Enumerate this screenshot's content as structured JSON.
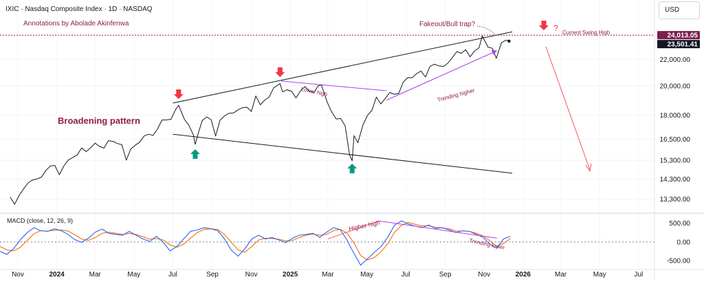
{
  "header": {
    "title": "IXIC · Nasdaq Composite Index · 1D · NASDAQ",
    "credit": "Annotations by Abolade Akinfenwa",
    "currency": "USD"
  },
  "price_badges": {
    "swing_high": "24,013.05",
    "last": "23,501.41"
  },
  "annotations": {
    "pattern": "Broadening pattern",
    "fakeout": "Fakeout/Bull trap?",
    "question": "?",
    "swing_high": "Current Swing High",
    "lower_high": "Lower high",
    "trending_higher": "Trending higher",
    "higher_high": "Higher high",
    "trending_lower": "Trending lower"
  },
  "macd_label": "MACD (close, 12, 26, 9)",
  "colors": {
    "price_line": "#131722",
    "macd_line": "#2962ff",
    "signal_line": "#ff6d00",
    "annotation": "#8e1c4a",
    "down_arrow": "#f23645",
    "up_arrow": "#089981",
    "trend_violet": "#b03ee8",
    "projection": "#f7525f"
  },
  "chart_data": [
    {
      "type": "line",
      "title": "IXIC · Nasdaq Composite Index · 1D · NASDAQ",
      "x_ticks": [
        "Nov",
        "2024",
        "Mar",
        "May",
        "Jul",
        "Sep",
        "Nov",
        "2025",
        "Mar",
        "May",
        "Jul",
        "Sep",
        "Nov",
        "2026",
        "Mar",
        "May",
        "Jul"
      ],
      "y_ticks": [
        "24,000.00",
        "22,000.00",
        "20,000.00",
        "18,000.00",
        "16,500.00",
        "15,300.00",
        "14,300.00",
        "13,300.00"
      ],
      "scale": "log",
      "ylim": [
        12800,
        25300
      ],
      "series": [
        {
          "x": [
            "2023-10-20",
            "2023-10-27",
            "2023-11-03",
            "2023-11-10",
            "2023-11-17",
            "2023-11-24",
            "2023-12-01",
            "2023-12-08",
            "2023-12-15",
            "2023-12-22",
            "2023-12-29",
            "2024-01-05",
            "2024-01-12",
            "2024-01-19",
            "2024-01-26",
            "2024-02-02",
            "2024-02-09",
            "2024-02-16",
            "2024-02-23",
            "2024-03-01",
            "2024-03-08",
            "2024-03-15",
            "2024-03-22",
            "2024-03-29",
            "2024-04-05",
            "2024-04-12",
            "2024-04-19",
            "2024-04-26",
            "2024-05-03",
            "2024-05-10",
            "2024-05-17",
            "2024-05-24",
            "2024-05-31",
            "2024-06-07",
            "2024-06-14",
            "2024-06-21",
            "2024-06-28",
            "2024-07-05",
            "2024-07-10",
            "2024-07-19",
            "2024-07-26",
            "2024-08-02",
            "2024-08-05",
            "2024-08-09",
            "2024-08-16",
            "2024-08-23",
            "2024-08-30",
            "2024-09-06",
            "2024-09-13",
            "2024-09-20",
            "2024-09-27",
            "2024-10-04",
            "2024-10-11",
            "2024-10-18",
            "2024-10-25",
            "2024-11-01",
            "2024-11-08",
            "2024-11-15",
            "2024-11-22",
            "2024-11-29",
            "2024-12-06",
            "2024-12-16",
            "2024-12-20",
            "2024-12-27",
            "2025-01-03",
            "2025-01-10",
            "2025-01-17",
            "2025-01-24",
            "2025-01-31",
            "2025-02-07",
            "2025-02-14",
            "2025-02-19",
            "2025-02-28",
            "2025-03-07",
            "2025-03-14",
            "2025-03-21",
            "2025-03-28",
            "2025-04-04",
            "2025-04-08",
            "2025-04-11",
            "2025-04-17",
            "2025-04-25",
            "2025-05-02",
            "2025-05-09",
            "2025-05-16",
            "2025-05-23",
            "2025-05-30",
            "2025-06-06",
            "2025-06-13",
            "2025-06-20",
            "2025-06-27",
            "2025-07-04",
            "2025-07-11",
            "2025-07-18",
            "2025-07-25",
            "2025-08-01",
            "2025-08-08",
            "2025-08-15",
            "2025-08-22",
            "2025-08-29",
            "2025-09-05",
            "2025-09-12",
            "2025-09-19",
            "2025-09-26",
            "2025-10-03",
            "2025-10-10",
            "2025-10-17",
            "2025-10-24",
            "2025-10-29",
            "2025-11-07",
            "2025-11-14",
            "2025-11-20",
            "2025-11-28",
            "2025-12-05",
            "2025-12-10"
          ],
          "y": [
            13400,
            13050,
            13480,
            13800,
            14100,
            14250,
            14300,
            14400,
            14750,
            14990,
            15010,
            14520,
            14980,
            15310,
            15450,
            15600,
            15990,
            15780,
            16000,
            16270,
            16080,
            15980,
            16420,
            16380,
            16250,
            16180,
            15300,
            15930,
            16150,
            16330,
            16700,
            16800,
            16730,
            17130,
            17690,
            17690,
            17730,
            18350,
            18650,
            17730,
            17350,
            16780,
            16200,
            16750,
            17650,
            17880,
            17710,
            16690,
            17680,
            17950,
            18120,
            18140,
            18340,
            18490,
            18520,
            18240,
            19290,
            18680,
            19000,
            19220,
            19860,
            20170,
            19570,
            19720,
            19620,
            19160,
            19630,
            19950,
            19630,
            19520,
            20020,
            20060,
            18850,
            18200,
            17750,
            17780,
            17320,
            15590,
            15270,
            16720,
            16290,
            17380,
            17980,
            18310,
            19210,
            18740,
            19110,
            19530,
            19410,
            19450,
            20270,
            20600,
            20590,
            20900,
            21100,
            20650,
            21450,
            21620,
            21500,
            21450,
            21700,
            22140,
            22630,
            22490,
            22780,
            22210,
            22680,
            22940,
            23950,
            23000,
            22900,
            22080,
            23360,
            23580,
            23501
          ]
        }
      ]
    },
    {
      "type": "line",
      "title": "MACD (close, 12, 26, 9)",
      "y_ticks": [
        "500.00",
        "0.00",
        "-500.00"
      ],
      "ylim": [
        -700,
        620
      ],
      "series": [
        {
          "name": "MACD",
          "values": [
            -250,
            -330,
            -180,
            60,
            250,
            380,
            300,
            280,
            350,
            300,
            200,
            60,
            -10,
            100,
            260,
            340,
            230,
            200,
            180,
            280,
            180,
            80,
            10,
            150,
            -10,
            -240,
            -120,
            80,
            280,
            320,
            380,
            350,
            300,
            80,
            -220,
            -380,
            -180,
            80,
            180,
            80,
            120,
            50,
            -20,
            100,
            180,
            200,
            230,
            120,
            260,
            380,
            330,
            50,
            -300,
            -620,
            -450,
            -280,
            -120,
            130,
            450,
            560,
            480,
            420,
            380,
            450,
            360,
            380,
            320,
            250,
            300,
            280,
            200,
            120,
            -60,
            -170,
            80,
            150
          ]
        },
        {
          "name": "Signal",
          "values": [
            -120,
            -210,
            -240,
            -140,
            40,
            220,
            300,
            290,
            310,
            320,
            290,
            190,
            80,
            40,
            120,
            230,
            260,
            230,
            200,
            230,
            200,
            140,
            70,
            90,
            50,
            -80,
            -140,
            -60,
            100,
            250,
            330,
            350,
            330,
            200,
            -10,
            -220,
            -270,
            -120,
            50,
            100,
            90,
            70,
            30,
            40,
            120,
            180,
            210,
            180,
            200,
            300,
            340,
            230,
            -20,
            -360,
            -480,
            -420,
            -260,
            -50,
            260,
            440,
            520,
            470,
            430,
            430,
            390,
            370,
            350,
            290,
            290,
            280,
            230,
            160,
            30,
            -120,
            -40,
            90
          ]
        }
      ]
    }
  ]
}
